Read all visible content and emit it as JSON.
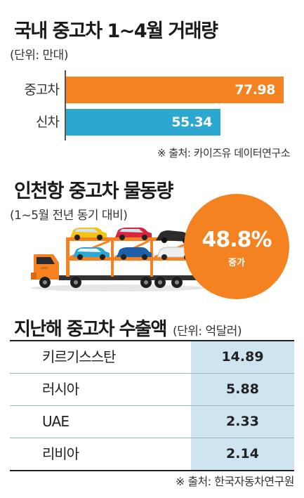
{
  "section1": {
    "title": "국내 중고차 1~4월 거래량",
    "unit": "(단위: 만대)",
    "source": "※ 출처: 카이즈유 데이터연구소"
  },
  "section2": {
    "title": "인천항 중고차 물동량",
    "subtitle": "(1~5월 전년 동기 대비)",
    "change_value": "48.8%",
    "change_label": "증가"
  },
  "section3": {
    "title": "지난해 중고차 수출액",
    "unit": "(단위: 억달러)",
    "source": "※ 출처: 한국자동차연구원",
    "rows": [
      {
        "country": "키르기스스탄",
        "value": "14.89"
      },
      {
        "country": "러시아",
        "value": "5.88"
      },
      {
        "country": "UAE",
        "value": "2.33"
      },
      {
        "country": "리비아",
        "value": "2.14"
      }
    ]
  },
  "colors": {
    "orange": "#f58220",
    "blue": "#2ba7d0",
    "light_blue": "#cfe4f1"
  },
  "icons": [
    "car-carrier-truck-icon"
  ],
  "chart_data": [
    {
      "type": "bar",
      "orientation": "horizontal",
      "title": "국내 중고차 1~4월 거래량",
      "subtitle": "(단위: 만대)",
      "categories": [
        "중고차",
        "신차"
      ],
      "values": [
        77.98,
        55.34
      ],
      "value_labels": [
        "77.98",
        "55.34"
      ],
      "colors": [
        "#f58220",
        "#2ba7d0"
      ],
      "xlim": [
        0,
        77.98
      ],
      "grid": false
    },
    {
      "type": "table",
      "title": "지난해 중고차 수출액",
      "subtitle": "(단위: 억달러)",
      "categories": [
        "키르기스스탄",
        "러시아",
        "UAE",
        "리비아"
      ],
      "values": [
        14.89,
        5.88,
        2.33,
        2.14
      ]
    }
  ]
}
